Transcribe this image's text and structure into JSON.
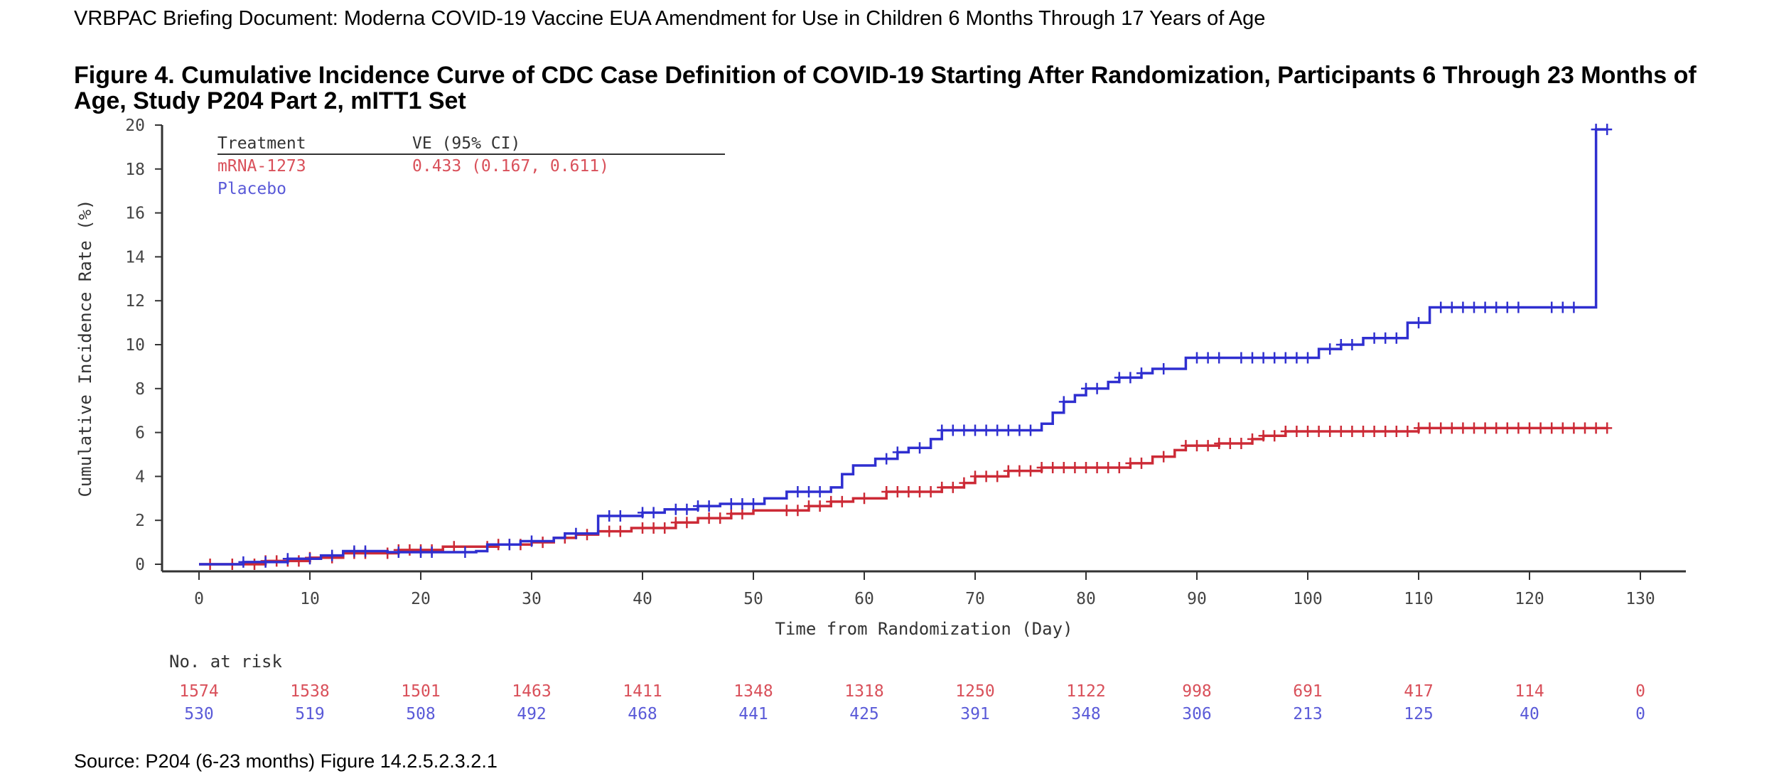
{
  "document": {
    "header": "VRBPAC  Briefing Document: Moderna COVID-19  Vaccine EUA  Amendment for Use in Children 6 Months Through 17 Years of Age",
    "figure_title": "Figure 4. Cumulative Incidence Curve of CDC Case Definition of COVID-19 Starting After Randomization, Participants 6 Through 23 Months of Age, Study P204 Part 2, mITT1 Set",
    "source": "Source: P204 (6-23 months) Figure 14.2.5.2.3.2.1"
  },
  "colors": {
    "mrna": "#cc2a36",
    "placebo": "#2f2fd0",
    "mrna_text": "#d9505a",
    "placebo_text": "#5a5ad8",
    "axis": "#333333"
  },
  "chart_data": {
    "type": "line",
    "step": true,
    "xlabel": "Time from Randomization (Day)",
    "ylabel": "Cumulative Incidence Rate (%)",
    "xlim": [
      0,
      130
    ],
    "ylim": [
      0,
      20
    ],
    "xticks": [
      0,
      10,
      20,
      30,
      40,
      50,
      60,
      70,
      80,
      90,
      100,
      110,
      120,
      130
    ],
    "yticks": [
      0,
      2,
      4,
      6,
      8,
      10,
      12,
      14,
      16,
      18,
      20
    ],
    "legend": {
      "position": "top-left",
      "col_treatment": "Treatment",
      "col_ve": "VE (95% CI)",
      "rows": [
        {
          "treatment": "mRNA-1273",
          "ve": "0.433 (0.167, 0.611)"
        },
        {
          "treatment": "Placebo",
          "ve": ""
        }
      ]
    },
    "series": [
      {
        "name": "mRNA-1273",
        "color_key": "mrna",
        "x": [
          0,
          6,
          10,
          13,
          18,
          22,
          27,
          30,
          32,
          34,
          36,
          39,
          43,
          45,
          48,
          50,
          55,
          57,
          59,
          62,
          67,
          69,
          70,
          73,
          76,
          84,
          86,
          88,
          89,
          92,
          95,
          96,
          98,
          110,
          127
        ],
        "y": [
          0,
          0.15,
          0.3,
          0.5,
          0.65,
          0.8,
          0.9,
          1.0,
          1.2,
          1.35,
          1.5,
          1.65,
          1.9,
          2.1,
          2.3,
          2.45,
          2.65,
          2.85,
          3.0,
          3.3,
          3.5,
          3.7,
          4.0,
          4.25,
          4.4,
          4.6,
          4.9,
          5.2,
          5.4,
          5.5,
          5.7,
          5.85,
          6.05,
          6.2,
          6.2
        ]
      },
      {
        "name": "Placebo",
        "color_key": "placebo",
        "x": [
          0,
          4,
          8,
          11,
          13,
          17,
          25,
          26,
          29,
          32,
          33,
          36,
          40,
          42,
          45,
          47,
          51,
          53,
          57,
          58,
          59,
          61,
          63,
          64,
          66,
          67,
          76,
          77,
          78,
          79,
          80,
          82,
          83,
          85,
          86,
          89,
          101,
          103,
          105,
          109,
          111,
          126,
          127
        ],
        "y": [
          0,
          0.1,
          0.25,
          0.4,
          0.6,
          0.55,
          0.6,
          0.9,
          1.05,
          1.2,
          1.4,
          2.2,
          2.35,
          2.5,
          2.65,
          2.75,
          3.0,
          3.3,
          3.5,
          4.1,
          4.5,
          4.8,
          5.1,
          5.3,
          5.7,
          6.1,
          6.4,
          6.9,
          7.4,
          7.7,
          8.0,
          8.3,
          8.5,
          8.7,
          8.9,
          9.4,
          9.8,
          10.0,
          10.3,
          11.0,
          11.7,
          19.8,
          19.8
        ]
      }
    ],
    "censor_marks": {
      "mRNA-1273": [
        1,
        3,
        5,
        6,
        7,
        8,
        9,
        10,
        12,
        14,
        15,
        17,
        18,
        19,
        20,
        21,
        23,
        26,
        27,
        28,
        29,
        31,
        33,
        35,
        37,
        38,
        40,
        41,
        42,
        43,
        44,
        46,
        47,
        48,
        49,
        53,
        54,
        55,
        56,
        57,
        58,
        60,
        62,
        63,
        64,
        65,
        66,
        67,
        68,
        69,
        70,
        71,
        72,
        73,
        74,
        75,
        76,
        77,
        78,
        79,
        80,
        81,
        82,
        83,
        84,
        85,
        87,
        89,
        90,
        91,
        92,
        93,
        94,
        95,
        96,
        97,
        98,
        99,
        100,
        101,
        102,
        103,
        104,
        105,
        106,
        107,
        108,
        109,
        110,
        111,
        112,
        113,
        114,
        115,
        116,
        117,
        118,
        119,
        120,
        121,
        122,
        123,
        124,
        125,
        126,
        127
      ],
      "Placebo": [
        4,
        6,
        8,
        10,
        12,
        14,
        15,
        18,
        20,
        21,
        24,
        28,
        30,
        34,
        37,
        38,
        40,
        41,
        43,
        44,
        45,
        46,
        48,
        49,
        50,
        54,
        55,
        56,
        62,
        63,
        65,
        67,
        68,
        69,
        70,
        71,
        72,
        73,
        74,
        75,
        78,
        80,
        81,
        83,
        84,
        85,
        87,
        90,
        91,
        92,
        94,
        95,
        96,
        97,
        98,
        99,
        100,
        102,
        103,
        104,
        106,
        107,
        108,
        110,
        112,
        113,
        114,
        115,
        116,
        117,
        118,
        119,
        122,
        123,
        124,
        126,
        127
      ]
    },
    "risk_table": {
      "title": "No. at risk",
      "days": [
        0,
        10,
        20,
        30,
        40,
        50,
        60,
        70,
        80,
        90,
        100,
        110,
        120,
        130
      ],
      "rows": [
        {
          "name": "mRNA-1273",
          "color_key": "mrna_text",
          "values": [
            "1574",
            "1538",
            "1501",
            "1463",
            "1411",
            "1348",
            "1318",
            "1250",
            "1122",
            "998",
            "691",
            "417",
            "114",
            "0"
          ]
        },
        {
          "name": "Placebo",
          "color_key": "placebo_text",
          "values": [
            "530",
            "519",
            "508",
            "492",
            "468",
            "441",
            "425",
            "391",
            "348",
            "306",
            "213",
            "125",
            "40",
            "0"
          ]
        }
      ]
    }
  }
}
